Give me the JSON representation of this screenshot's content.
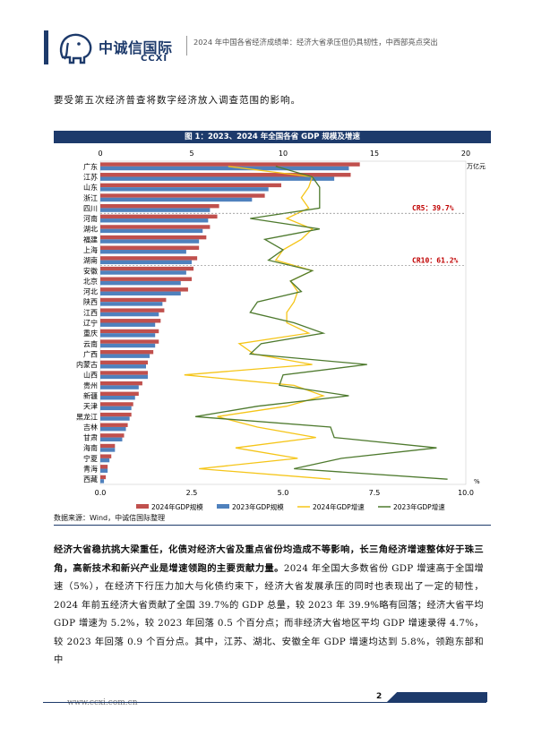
{
  "header": {
    "logo_cn": "中诚信国际",
    "logo_en": "CCXI",
    "title": "2024 年中国各省经济成绩单：经济大省承压但仍具韧性，中西部亮点突出"
  },
  "intro_text": "要受第五次经济普查将数字经济放入调查范围的影响。",
  "figure": {
    "title": "图 1：2023、2024 年全国各省 GDP 规模及增速",
    "source": "数据来源：Wind，中诚信国际整理"
  },
  "chart_data": {
    "type": "bar",
    "orientation": "horizontal",
    "categories": [
      "广东",
      "江苏",
      "山东",
      "浙江",
      "四川",
      "河南",
      "湖北",
      "福建",
      "上海",
      "湖南",
      "安徽",
      "北京",
      "河北",
      "陕西",
      "江西",
      "辽宁",
      "重庆",
      "云南",
      "广西",
      "内蒙古",
      "山西",
      "贵州",
      "新疆",
      "天津",
      "黑龙江",
      "吉林",
      "甘肃",
      "海南",
      "宁夏",
      "青海",
      "西藏"
    ],
    "series": [
      {
        "name": "2024年GDP规模",
        "color": "#c0504d",
        "axis": "top",
        "values": [
          14.2,
          13.7,
          9.9,
          9.0,
          6.5,
          6.4,
          6.0,
          5.8,
          5.4,
          5.3,
          5.1,
          5.0,
          4.8,
          3.6,
          3.5,
          3.3,
          3.2,
          3.2,
          2.9,
          2.6,
          2.6,
          2.3,
          2.1,
          1.8,
          1.7,
          1.5,
          1.3,
          0.8,
          0.6,
          0.4,
          0.3
        ]
      },
      {
        "name": "2023年GDP规模",
        "color": "#4f81bd",
        "axis": "top",
        "values": [
          13.6,
          12.8,
          9.2,
          8.3,
          6.0,
          5.9,
          5.6,
          5.4,
          4.7,
          5.0,
          4.7,
          4.4,
          4.4,
          3.4,
          3.2,
          3.0,
          3.0,
          3.0,
          2.7,
          2.5,
          2.6,
          2.1,
          1.9,
          1.7,
          1.6,
          1.4,
          1.2,
          0.8,
          0.5,
          0.4,
          0.2
        ]
      },
      {
        "name": "2024年GDP增速",
        "color": "#f5c518",
        "axis": "bottom",
        "values": [
          3.5,
          5.8,
          5.7,
          5.5,
          5.7,
          5.1,
          5.8,
          5.5,
          5.0,
          4.8,
          5.8,
          5.2,
          5.4,
          5.3,
          5.1,
          5.1,
          5.7,
          3.8,
          4.2,
          5.8,
          2.3,
          5.3,
          6.1,
          5.1,
          3.2,
          4.3,
          5.9,
          3.7,
          5.4,
          2.7,
          6.3
        ]
      },
      {
        "name": "2023年GDP增速",
        "color": "#4e7a2e",
        "axis": "bottom",
        "values": [
          4.8,
          5.8,
          6.0,
          6.0,
          6.0,
          4.1,
          6.0,
          4.5,
          5.0,
          4.6,
          5.8,
          5.2,
          5.5,
          4.3,
          4.1,
          5.3,
          6.1,
          4.4,
          4.1,
          7.3,
          5.0,
          4.9,
          6.8,
          4.3,
          2.6,
          6.3,
          6.4,
          9.2,
          6.6,
          5.3,
          9.5
        ]
      }
    ],
    "top_axis": {
      "range": [
        0,
        20
      ],
      "ticks": [
        "0",
        "5",
        "10",
        "15",
        "20"
      ],
      "unit": "万亿元"
    },
    "bottom_axis": {
      "range": [
        0,
        10
      ],
      "ticks": [
        "0.0",
        "2.5",
        "5.0",
        "7.5",
        "10.0"
      ],
      "unit": "%"
    },
    "annotations": [
      {
        "label": "CR5：39.7%",
        "after_index": 4
      },
      {
        "label": "CR10：61.2%",
        "after_index": 9
      }
    ],
    "legend_position": "bottom"
  },
  "paragraph": {
    "bold": "经济大省稳抗挑大梁重任，化债对经济大省及重点省份均造成不等影响，长三角经济增速整体好于珠三角，高新技术和新兴产业是增速领跑的主要贡献力量。",
    "text": "2024 年全国大多数省份 GDP 增速高于全国增速（5%），在经济下行压力加大与化债约束下，经济大省发展承压的同时也表现出了一定的韧性，2024 年前五经济大省贡献了全国 39.7%的 GDP 总量，较 2023 年 39.9%略有回落；经济大省平均 GDP 增速为 5.2%，较 2023 年回落 0.5 个百分点；而非经济大省地区平均 GDP 增速录得 4.7%，较 2023 年回落 0.9 个百分点。其中，江苏、湖北、安徽全年 GDP 增速均达到 5.8%，领跑东部和中"
  },
  "footer": {
    "url": "www.ccxi.com.cn",
    "page": "2"
  },
  "colors": {
    "brand": "#1d3a6b"
  }
}
